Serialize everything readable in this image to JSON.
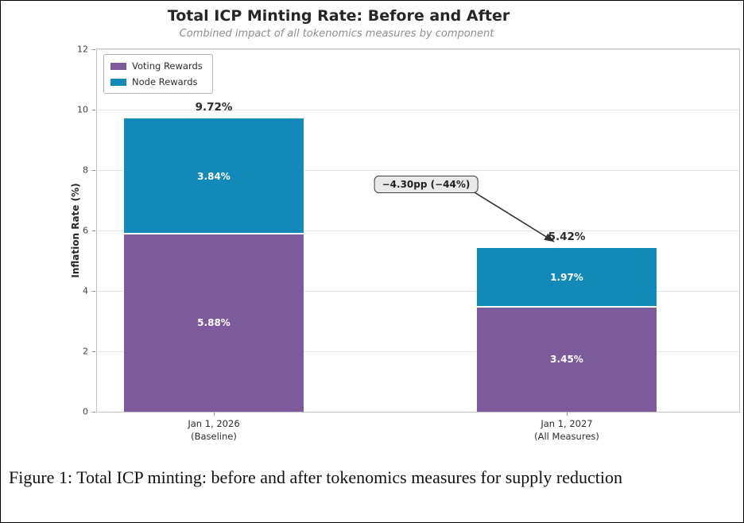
{
  "figure": {
    "caption": "Figure 1: Total ICP minting: before and after tokenomics measures for supply reduction"
  },
  "chart_data": {
    "type": "bar",
    "stacked": true,
    "title": "Total ICP Minting Rate: Before and After",
    "subtitle": "Combined impact of all tokenomics measures by component",
    "ylabel": "Inflation Rate (%)",
    "xlabel": "",
    "ylim": [
      0,
      12
    ],
    "yticks": [
      0,
      2,
      4,
      6,
      8,
      10,
      12
    ],
    "grid": true,
    "legend_position": "upper left",
    "categories": [
      "Jan 1, 2026\n(Baseline)",
      "Jan 1, 2027\n(All Measures)"
    ],
    "series": [
      {
        "name": "Voting Rewards",
        "color": "#7d5a9c",
        "values": [
          5.88,
          3.45
        ],
        "labels": [
          "5.88%",
          "3.45%"
        ]
      },
      {
        "name": "Node Rewards",
        "color": "#1389ba",
        "values": [
          3.84,
          1.97
        ],
        "labels": [
          "3.84%",
          "1.97%"
        ]
      }
    ],
    "totals": [
      9.72,
      5.42
    ],
    "total_labels": [
      "9.72%",
      "5.42%"
    ],
    "annotation": {
      "text": "−4.30pp (−44%)"
    }
  }
}
